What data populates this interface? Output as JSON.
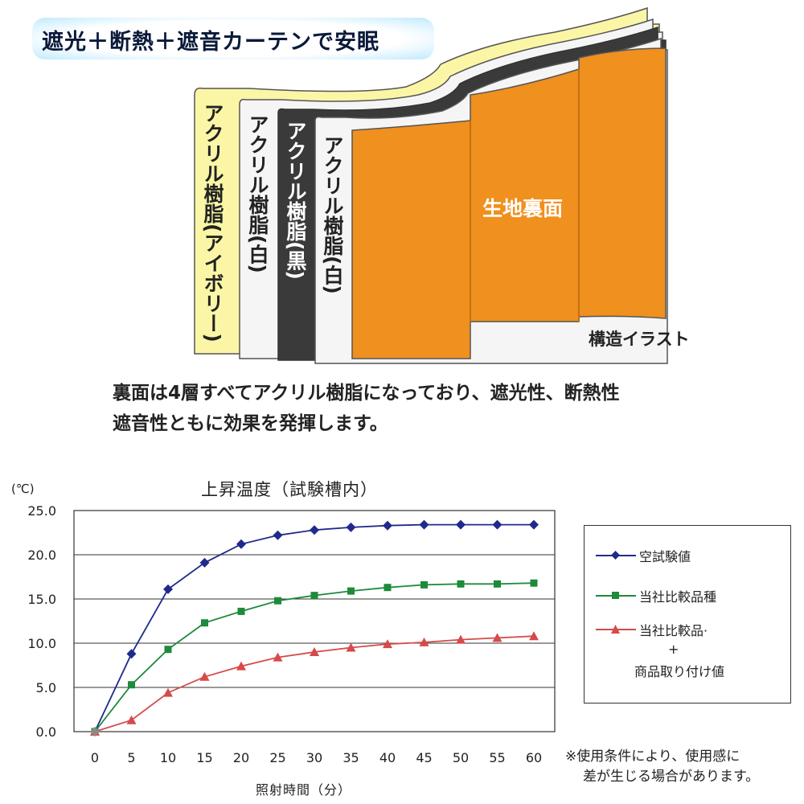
{
  "banner": {
    "title": "遮光＋断熱＋遮音カーテンで安眠"
  },
  "illustration": {
    "layers": [
      {
        "label": "アクリル樹脂(アイボリー)",
        "color": "#fbf6a6"
      },
      {
        "label": "アクリル樹脂(白)",
        "color": "#f4f4f4"
      },
      {
        "label": "アクリル樹脂(黒)",
        "color": "#3a3a3a"
      },
      {
        "label": "アクリル樹脂(白)",
        "color": "#f4f4f4"
      }
    ],
    "back_label": "生地裏面",
    "back_color": "#f0901e",
    "caption": "構造イラスト"
  },
  "description": {
    "line1": "裏面は4層すべてアクリル樹脂になっており、遮光性、断熱性",
    "line2": "遮音性ともに効果を発揮します。"
  },
  "chart_data": {
    "type": "line",
    "title": "上昇温度（試験槽内）",
    "unit_label": "(℃)",
    "xlabel": "照射時間（分）",
    "ylabel": "",
    "x": [
      0,
      5,
      10,
      15,
      20,
      25,
      30,
      35,
      40,
      45,
      50,
      55,
      60
    ],
    "xlim": [
      0,
      60
    ],
    "ylim": [
      0,
      25
    ],
    "yticks": [
      0,
      5,
      10,
      15,
      20,
      25
    ],
    "ytick_labels": [
      "0.0",
      "5.0",
      "10.0",
      "15.0",
      "20.0",
      "25.0"
    ],
    "xtick_labels": [
      "0",
      "5",
      "10",
      "15",
      "20",
      "25",
      "30",
      "35",
      "40",
      "45",
      "50",
      "55",
      "60"
    ],
    "grid": "horizontal",
    "legend_position": "right",
    "series": [
      {
        "name": "空試験値",
        "color": "#1f2a8c",
        "marker": "diamond",
        "values": [
          0,
          8.8,
          16.1,
          19.1,
          21.2,
          22.2,
          22.8,
          23.1,
          23.3,
          23.4,
          23.4,
          23.4,
          23.4
        ]
      },
      {
        "name": "当社比較品種",
        "color": "#1e8a3c",
        "marker": "square",
        "values": [
          0,
          5.3,
          9.3,
          12.3,
          13.6,
          14.8,
          15.4,
          15.9,
          16.3,
          16.6,
          16.7,
          16.7,
          16.8
        ]
      },
      {
        "name": "当社比較品·\n+\n商品取り付け値",
        "color": "#d64a4a",
        "marker": "triangle",
        "values": [
          0,
          1.3,
          4.4,
          6.2,
          7.4,
          8.4,
          9.0,
          9.5,
          9.9,
          10.1,
          10.4,
          10.6,
          10.8
        ]
      }
    ]
  },
  "legend_lines": {
    "s3_line1": "当社比較品·",
    "s3_line2": "+",
    "s3_line3": "商品取り付け値"
  },
  "note": {
    "line1": "※使用条件により、使用感に",
    "line2": "差が生じる場合があります。"
  }
}
